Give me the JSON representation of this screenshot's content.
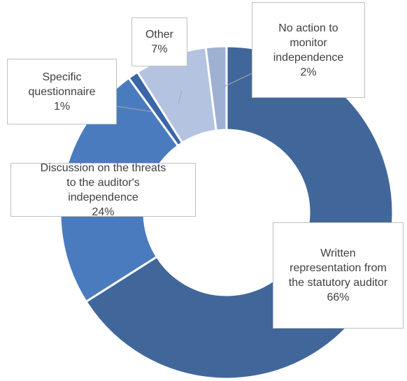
{
  "chart_data": {
    "type": "donut",
    "categories": [
      "Written representation from the statutory auditor",
      "Discussion on the threats to the auditor's independence",
      "Specific questionnaire",
      "Other",
      "No action to monitor independence"
    ],
    "values": [
      66,
      24,
      1,
      7,
      2
    ],
    "value_labels": [
      "66%",
      "24%",
      "1%",
      "7%",
      "2%"
    ],
    "colors": [
      "#41679a",
      "#4a7bbf",
      "#3a65a6",
      "#b4c3e0",
      "#9fb1d3"
    ]
  }
}
